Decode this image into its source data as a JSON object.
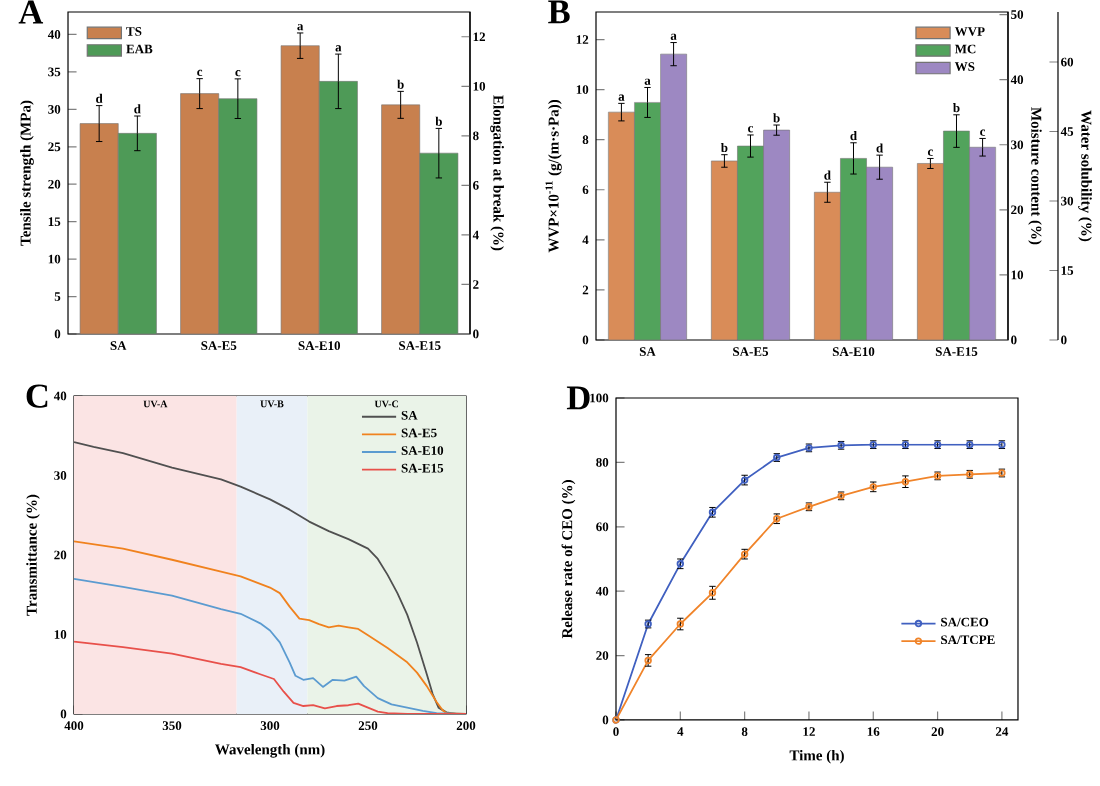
{
  "chart_data": [
    {
      "type": "bar",
      "title": "A",
      "categories": [
        "SA",
        "SA-E5",
        "SA-E10",
        "SA-E15"
      ],
      "ylabel": "Tensile strength (MPa)",
      "y2label": "Elongation at break (%)",
      "ylim": [
        0,
        43
      ],
      "yticks": [
        0,
        5,
        10,
        15,
        20,
        25,
        30,
        35,
        40
      ],
      "y2lim": [
        0,
        13
      ],
      "y2ticks": [
        0,
        2,
        4,
        6,
        8,
        10,
        12
      ],
      "legend": "top left",
      "series": [
        {
          "name": "TS",
          "color": "#c8804e",
          "values": [
            28.1,
            32.1,
            38.5,
            30.6
          ],
          "errors": [
            2.4,
            2.0,
            1.7,
            1.8
          ],
          "value_labels": [
            "d",
            "c",
            "a",
            "b"
          ]
        },
        {
          "name": "EAB",
          "color": "#4e9a57",
          "axis": "y2",
          "values": [
            8.1,
            9.5,
            10.2,
            7.3
          ],
          "errors": [
            0.7,
            0.8,
            1.1,
            1.0
          ],
          "value_labels": [
            "d",
            "c",
            "a",
            "b"
          ]
        }
      ]
    },
    {
      "type": "bar",
      "title": "B",
      "categories": [
        "SA",
        "SA-E5",
        "SA-E10",
        "SA-E15"
      ],
      "ylabel": "WVP×10$^{-11}$ (g/(m·s·Pa))",
      "y2label": "Moisture content (%)",
      "y3label": "Water solubility (%)",
      "ylim": [
        0,
        13.1
      ],
      "yticks": [
        0,
        2,
        4,
        6,
        8,
        10,
        12
      ],
      "y2lim": [
        0,
        50.4
      ],
      "y2ticks": [
        0,
        10,
        20,
        30,
        40,
        50
      ],
      "y3lim": [
        0,
        70.8
      ],
      "y3ticks": [
        0,
        15,
        30,
        45,
        60
      ],
      "legend": "top right",
      "series": [
        {
          "name": "WVP",
          "color": "#d98c58",
          "values": [
            9.1,
            7.15,
            5.9,
            7.05
          ],
          "errors": [
            0.35,
            0.25,
            0.4,
            0.2
          ],
          "value_labels": [
            "a",
            "b",
            "d",
            "c"
          ]
        },
        {
          "name": "MC",
          "color": "#52a35c",
          "axis": "y2",
          "values": [
            36.5,
            29.8,
            27.9,
            32.1
          ],
          "errors": [
            2.3,
            1.7,
            2.4,
            2.5
          ],
          "value_labels": [
            "a",
            "c",
            "d",
            "b"
          ]
        },
        {
          "name": "WS",
          "color": "#9d88c2",
          "axis": "y3",
          "values": [
            61.7,
            45.3,
            37.3,
            41.6
          ],
          "errors": [
            2.5,
            1.1,
            2.6,
            1.9
          ],
          "value_labels": [
            "a",
            "b",
            "d",
            "c"
          ]
        }
      ]
    },
    {
      "type": "line",
      "title": "C",
      "xlabel": "Wavelength (nm)",
      "ylabel": "Transmittance (%)",
      "xlim": [
        400,
        200
      ],
      "xticks": [
        400,
        350,
        300,
        250,
        200
      ],
      "ylim": [
        0,
        40
      ],
      "yticks": [
        0,
        10,
        20,
        30,
        40
      ],
      "legend": "top right",
      "line_style": "solid",
      "bands": [
        {
          "axis": "x",
          "from": 400,
          "to": 317,
          "label": "UV-A",
          "color": "#fbe4e4"
        },
        {
          "axis": "x",
          "from": 317,
          "to": 281,
          "label": "UV-B",
          "color": "#e9f0f8"
        },
        {
          "axis": "x",
          "from": 281,
          "to": 200,
          "label": "UV-C",
          "color": "#eaf3e8"
        }
      ],
      "series": [
        {
          "name": "SA",
          "color": "#505050",
          "x": [
            400,
            390,
            375,
            350,
            325,
            315,
            300,
            290,
            280,
            270,
            260,
            250,
            245,
            240,
            235,
            230,
            225,
            220,
            217,
            214,
            210,
            205,
            200
          ],
          "values": [
            34.2,
            33.6,
            32.8,
            31.0,
            29.5,
            28.6,
            27.0,
            25.7,
            24.2,
            23.0,
            22.0,
            20.8,
            19.5,
            17.5,
            15.2,
            12.5,
            9.0,
            5.0,
            2.5,
            0.8,
            0.2,
            0,
            0
          ]
        },
        {
          "name": "SA-E5",
          "color": "#f0821e",
          "x": [
            400,
            375,
            350,
            325,
            315,
            300,
            295,
            290,
            285,
            280,
            275,
            270,
            265,
            260,
            255,
            250,
            240,
            230,
            225,
            220,
            215,
            212,
            210,
            200
          ],
          "values": [
            21.7,
            20.8,
            19.4,
            17.9,
            17.3,
            15.9,
            15.2,
            13.5,
            12.0,
            11.8,
            11.3,
            10.9,
            11.1,
            10.9,
            10.7,
            9.9,
            8.3,
            6.5,
            5.2,
            3.5,
            1.5,
            0.5,
            0.1,
            0
          ]
        },
        {
          "name": "SA-E10",
          "color": "#5b9bd0",
          "x": [
            400,
            375,
            350,
            325,
            315,
            305,
            300,
            295,
            290,
            287,
            283,
            278,
            273,
            268,
            262,
            256,
            252,
            245,
            238,
            230,
            222,
            215,
            200
          ],
          "values": [
            17.0,
            16.0,
            14.9,
            13.2,
            12.6,
            11.4,
            10.5,
            9.0,
            6.5,
            4.8,
            4.3,
            4.5,
            3.4,
            4.3,
            4.2,
            4.7,
            3.5,
            2.0,
            1.2,
            0.8,
            0.4,
            0.1,
            0
          ]
        },
        {
          "name": "SA-E15",
          "color": "#e8504a",
          "x": [
            400,
            375,
            350,
            325,
            315,
            305,
            298,
            293,
            288,
            283,
            278,
            272,
            266,
            260,
            255,
            250,
            245,
            240,
            230,
            200
          ],
          "values": [
            9.1,
            8.4,
            7.6,
            6.3,
            5.9,
            5.0,
            4.4,
            2.8,
            1.4,
            1.0,
            1.1,
            0.7,
            1.0,
            1.1,
            1.3,
            0.8,
            0.3,
            0.1,
            0,
            0
          ]
        }
      ]
    },
    {
      "type": "line",
      "title": "D",
      "xlabel": "Time (h)",
      "ylabel": "Release rate of CEO (%)",
      "x": [
        0,
        2,
        4,
        6,
        8,
        10,
        12,
        14,
        16,
        18,
        20,
        22,
        24
      ],
      "xlim": [
        0,
        25
      ],
      "xticks": [
        0,
        4,
        8,
        12,
        16,
        20,
        24
      ],
      "ylim": [
        0,
        100
      ],
      "yticks": [
        0,
        20,
        40,
        60,
        80,
        100
      ],
      "legend": "bottom right",
      "marker": "circle",
      "line_style": "solid",
      "series": [
        {
          "name": "SA/CEO",
          "color": "#4060c0",
          "values": [
            0,
            29.8,
            48.5,
            64.5,
            74.5,
            81.5,
            84.5,
            85.3,
            85.5,
            85.5,
            85.5,
            85.5,
            85.5
          ],
          "errors": [
            0,
            1.2,
            1.5,
            1.5,
            1.5,
            1.2,
            1.2,
            1.2,
            1.2,
            1.2,
            1.2,
            1.2,
            1.2
          ]
        },
        {
          "name": "SA/TCPE",
          "color": "#f0842a",
          "values": [
            0,
            18.5,
            29.8,
            39.5,
            51.5,
            62.5,
            66.2,
            69.6,
            72.4,
            74.0,
            75.8,
            76.3,
            76.7
          ],
          "errors": [
            0,
            1.8,
            1.8,
            2.0,
            1.5,
            1.5,
            1.2,
            1.2,
            1.5,
            1.8,
            1.2,
            1.2,
            1.2
          ]
        }
      ]
    }
  ]
}
